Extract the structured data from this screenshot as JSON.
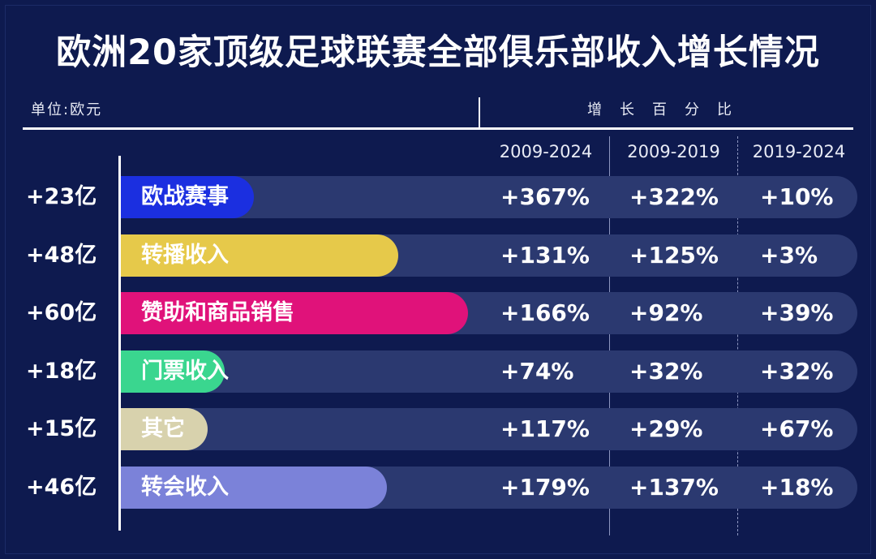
{
  "title": "欧洲20家顶级足球联赛全部俱乐部收入增长情况",
  "unit_label": "单位:欧元",
  "growth_header": "增长百分比",
  "colors": {
    "background": "#0e1a4f",
    "band": "#2b3970",
    "text": "#ffffff"
  },
  "chart_data": {
    "type": "bar",
    "title": "欧洲20家顶级足球联赛全部俱乐部收入增长情况",
    "unit": "单位:欧元",
    "columns": [
      "2009-2024",
      "2009-2019",
      "2019-2024"
    ],
    "categories": [
      "欧战赛事",
      "转播收入",
      "赞助和商品销售",
      "门票收入",
      "其它",
      "转会收入"
    ],
    "values": [
      23,
      48,
      60,
      18,
      15,
      46
    ],
    "value_labels": [
      "+23亿",
      "+48亿",
      "+60亿",
      "+18亿",
      "+15亿",
      "+46亿"
    ],
    "bar_colors": [
      "#1b2fe0",
      "#e6c94a",
      "#e0127a",
      "#3ad68f",
      "#d8d2ad",
      "#7b82d9"
    ],
    "rows": [
      {
        "category": "欧战赛事",
        "growth": [
          "+367%",
          "+322%",
          "+10%"
        ]
      },
      {
        "category": "转播收入",
        "growth": [
          "+131%",
          "+125%",
          "+3%"
        ]
      },
      {
        "category": "赞助和商品销售",
        "growth": [
          "+166%",
          "+92%",
          "+39%"
        ]
      },
      {
        "category": "门票收入",
        "growth": [
          "+74%",
          "+32%",
          "+32%"
        ]
      },
      {
        "category": "其它",
        "growth": [
          "+117%",
          "+29%",
          "+67%"
        ]
      },
      {
        "category": "转会收入",
        "growth": [
          "+179%",
          "+137%",
          "+18%"
        ]
      }
    ]
  }
}
